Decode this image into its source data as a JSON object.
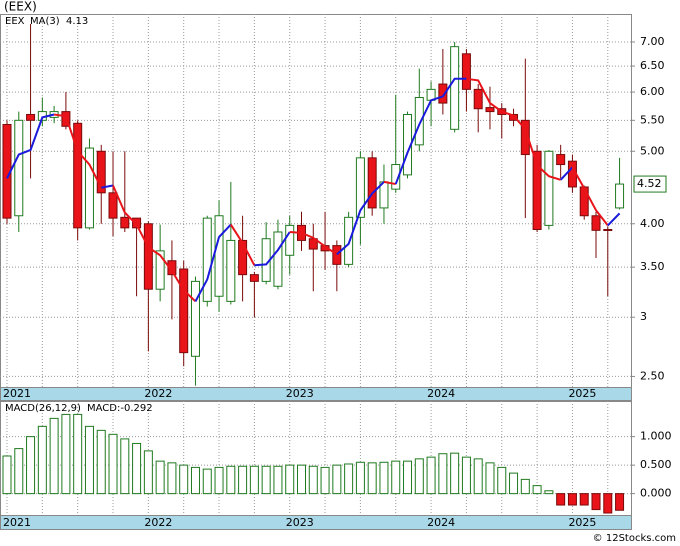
{
  "title": "(EEX)",
  "footer": "© 12Stocks.com",
  "chart_data": [
    {
      "type": "candlestick",
      "name": "EEX",
      "name_color": "#1f7a1f",
      "categories": [
        "2021",
        null,
        null,
        null,
        null,
        null,
        null,
        null,
        null,
        null,
        null,
        null,
        "2022",
        null,
        null,
        null,
        null,
        null,
        null,
        null,
        null,
        null,
        null,
        null,
        "2023",
        null,
        null,
        null,
        null,
        null,
        null,
        null,
        null,
        null,
        null,
        null,
        "2024",
        null,
        null,
        null,
        null,
        null,
        null,
        null,
        null,
        null,
        null,
        null,
        "2025",
        null,
        null,
        null,
        null
      ],
      "open": [
        5.43,
        4.1,
        5.6,
        5.5,
        5.55,
        5.65,
        5.45,
        3.95,
        5.0,
        4.4,
        4.08,
        4.07,
        4.0,
        3.27,
        3.57,
        3.48,
        2.66,
        3.15,
        3.2,
        3.15,
        3.8,
        3.42,
        3.35,
        3.3,
        3.63,
        3.98,
        3.82,
        3.74,
        3.74,
        3.53,
        4.08,
        4.9,
        4.2,
        4.45,
        4.65,
        5.1,
        5.85,
        6.15,
        5.35,
        6.75,
        6.05,
        5.72,
        5.7,
        5.6,
        5.5,
        5.0,
        3.98,
        4.95,
        4.85,
        4.48,
        4.1,
        3.93,
        4.2
      ],
      "high": [
        5.5,
        5.65,
        7.4,
        5.9,
        5.75,
        6.0,
        5.5,
        5.2,
        5.1,
        5.0,
        5.0,
        4.07,
        4.03,
        3.99,
        3.8,
        3.57,
        3.4,
        4.1,
        4.3,
        4.55,
        4.1,
        3.45,
        4.02,
        4.05,
        4.1,
        4.15,
        4.0,
        4.15,
        3.8,
        4.15,
        5.0,
        5.0,
        4.8,
        5.95,
        5.65,
        6.45,
        6.2,
        6.85,
        7.0,
        6.85,
        6.15,
        6.1,
        5.8,
        5.7,
        6.65,
        5.1,
        5.02,
        5.1,
        4.95,
        4.5,
        4.15,
        3.97,
        4.9
      ],
      "low": [
        4.0,
        3.9,
        4.6,
        5.4,
        5.45,
        5.35,
        3.8,
        3.93,
        4.0,
        3.85,
        3.9,
        3.2,
        2.7,
        3.15,
        2.98,
        2.58,
        2.43,
        3.1,
        3.05,
        3.12,
        3.15,
        3.0,
        3.32,
        3.27,
        3.42,
        3.68,
        3.25,
        3.47,
        3.25,
        3.5,
        3.75,
        4.1,
        4.0,
        4.4,
        4.6,
        5.0,
        5.4,
        5.6,
        5.3,
        5.65,
        5.3,
        5.35,
        5.2,
        5.4,
        4.07,
        3.9,
        3.93,
        4.6,
        4.4,
        4.05,
        3.6,
        3.2,
        4.18
      ],
      "close": [
        4.07,
        5.5,
        5.5,
        5.65,
        5.65,
        5.4,
        3.95,
        5.05,
        4.4,
        4.07,
        3.95,
        3.95,
        3.27,
        3.68,
        3.42,
        2.69,
        3.35,
        4.07,
        4.1,
        3.8,
        3.42,
        3.35,
        3.82,
        3.9,
        3.98,
        3.8,
        3.7,
        3.68,
        3.53,
        4.08,
        4.9,
        4.2,
        4.55,
        4.8,
        5.6,
        5.9,
        6.05,
        5.8,
        6.9,
        6.05,
        5.7,
        5.65,
        5.6,
        5.5,
        4.95,
        3.93,
        5.0,
        4.8,
        4.48,
        4.1,
        3.92,
        3.92,
        4.52
      ],
      "up_color": "#1f7a1f",
      "down_color": "#e8141a",
      "log_scale": true,
      "grid": true,
      "ylim": [
        2.42,
        7.63
      ],
      "yticks": [
        {
          "value": 2.5,
          "label": "2.50"
        },
        3,
        {
          "value": 3.5,
          "label": "3.50"
        },
        {
          "value": 4,
          "label": "4.00"
        },
        {
          "value": 5,
          "label": "5.00"
        },
        {
          "value": 5.5,
          "label": "5.50"
        },
        {
          "value": 6,
          "label": "6.00"
        },
        {
          "value": 6.5,
          "label": "6.50"
        },
        {
          "value": 7,
          "label": "7.00"
        }
      ],
      "series": [
        {
          "name": "MA(3)",
          "type": "line",
          "rise_color": "#1a1adc",
          "fall_color": "#e8141a",
          "values": [
            4.6,
            4.95,
            5.02,
            5.55,
            5.6,
            5.57,
            5.0,
            4.8,
            4.47,
            4.5,
            4.14,
            3.99,
            3.72,
            3.63,
            3.46,
            3.26,
            3.15,
            3.37,
            3.84,
            3.99,
            3.77,
            3.52,
            3.53,
            3.69,
            3.9,
            3.89,
            3.83,
            3.73,
            3.64,
            3.76,
            4.17,
            4.39,
            4.55,
            4.52,
            4.98,
            5.43,
            5.85,
            5.92,
            6.25,
            6.25,
            6.22,
            5.8,
            5.65,
            5.58,
            5.35,
            4.79,
            4.63,
            4.58,
            4.76,
            4.46,
            4.17,
            3.98,
            4.13
          ]
        }
      ]
    },
    {
      "type": "bar",
      "title": "MACD(26,12,9)",
      "up_color": "#1f7a1f",
      "down_color": "#e8141a",
      "grid": true,
      "ylim": [
        -0.375,
        1.625
      ],
      "yticks": [
        {
          "value": 1,
          "label": "1.000"
        },
        {
          "value": 0.5,
          "label": "0.500"
        },
        {
          "value": 0,
          "label": "0.000"
        }
      ],
      "series": [
        {
          "name": "MACD:-0.292",
          "color": "#1a1adc",
          "values": [
            0.66,
            0.79,
            1.0,
            1.18,
            1.32,
            1.39,
            1.39,
            1.18,
            1.11,
            1.04,
            0.96,
            0.88,
            0.75,
            0.57,
            0.54,
            0.5,
            0.46,
            0.43,
            0.46,
            0.48,
            0.48,
            0.48,
            0.48,
            0.48,
            0.5,
            0.5,
            0.48,
            0.46,
            0.5,
            0.52,
            0.55,
            0.54,
            0.55,
            0.57,
            0.57,
            0.61,
            0.64,
            0.7,
            0.71,
            0.64,
            0.61,
            0.54,
            0.46,
            0.36,
            0.25,
            0.14,
            0.05,
            -0.2,
            -0.2,
            -0.2,
            -0.28,
            -0.34,
            -0.292
          ]
        }
      ]
    }
  ]
}
